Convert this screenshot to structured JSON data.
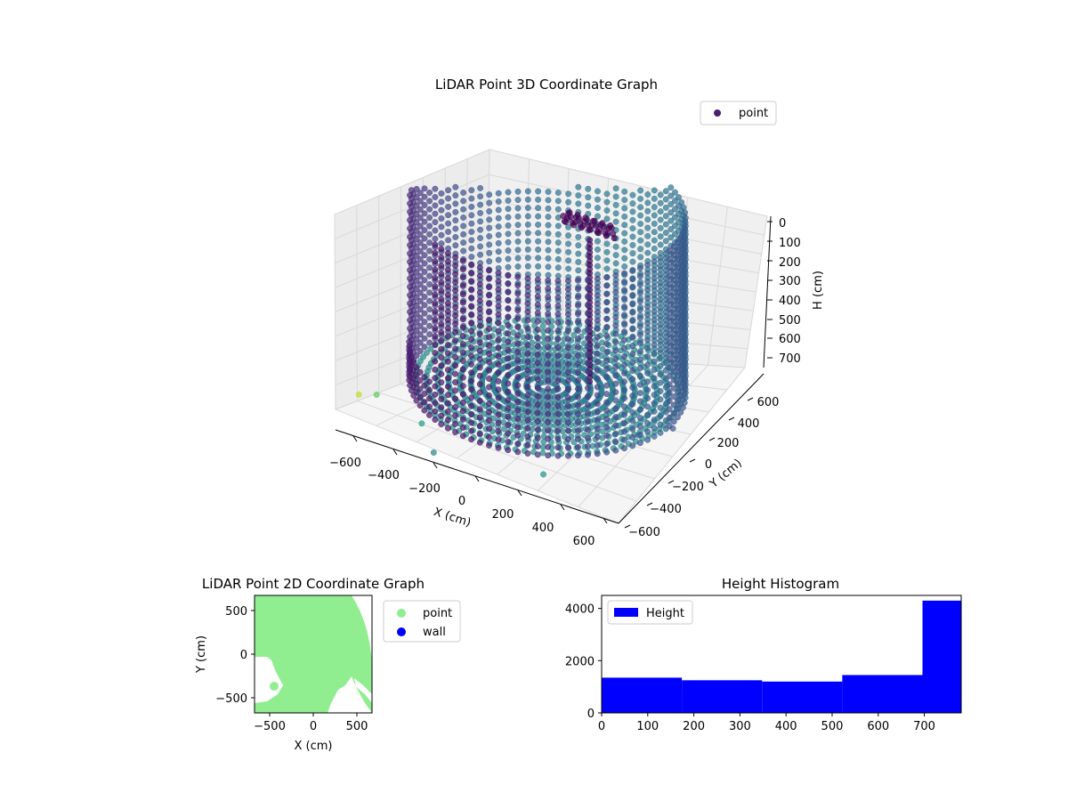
{
  "chart_data": [
    {
      "type": "scatter",
      "projection": "3d",
      "title": "LiDAR Point 3D Coordinate Graph",
      "xlabel": "X (cm)",
      "ylabel": "Y (cm)",
      "zlabel": "H (cm)",
      "xlim": [
        -650,
        650
      ],
      "ylim": [
        -650,
        650
      ],
      "zlim": [
        780,
        0
      ],
      "xticks": [
        "−600",
        "−400",
        "−200",
        "0",
        "200",
        "400",
        "600"
      ],
      "yticks": [
        "−600",
        "−400",
        "−200",
        "0",
        "200",
        "400",
        "600"
      ],
      "zticks": [
        "0",
        "100",
        "200",
        "300",
        "400",
        "500",
        "600",
        "700"
      ],
      "z_axis_inverted": true,
      "colormap": "viridis",
      "legend": {
        "entries": [
          "point"
        ],
        "placement": "top-right",
        "color": "#482173"
      },
      "grid": true,
      "series": [
        {
          "name": "point",
          "description_shape": "cylindrical wall of points, radius ~600 cm, height 0-780 cm, open front section, floor points near bottom",
          "approx_count": 10000
        }
      ]
    },
    {
      "type": "scatter",
      "title": "LiDAR Point 2D Coordinate Graph",
      "xlabel": "X (cm)",
      "ylabel": "Y (cm)",
      "xlim": [
        -680,
        680
      ],
      "ylim": [
        -680,
        680
      ],
      "xticks": [
        "−500",
        "0",
        "500"
      ],
      "yticks": [
        "−500",
        "0",
        "500"
      ],
      "legend": {
        "entries": [
          "point",
          "wall"
        ],
        "placement": "outside-right",
        "colors": [
          "#90ee90",
          "#0000ff"
        ]
      },
      "series": [
        {
          "name": "point",
          "color": "#90ee90"
        },
        {
          "name": "wall",
          "color": "#0000ff"
        }
      ]
    },
    {
      "type": "bar",
      "title": "Height Histogram",
      "xlim": [
        0,
        780
      ],
      "ylim": [
        0,
        4500
      ],
      "xticks": [
        "0",
        "100",
        "200",
        "300",
        "400",
        "500",
        "600",
        "700"
      ],
      "yticks": [
        "0",
        "2000",
        "4000"
      ],
      "bin_edges": [
        0,
        174,
        348,
        522,
        696,
        780
      ],
      "values": [
        1350,
        1250,
        1200,
        1450,
        4300
      ],
      "color": "#0000ff",
      "legend": {
        "entries": [
          "Height"
        ],
        "placement": "top-left"
      }
    }
  ]
}
